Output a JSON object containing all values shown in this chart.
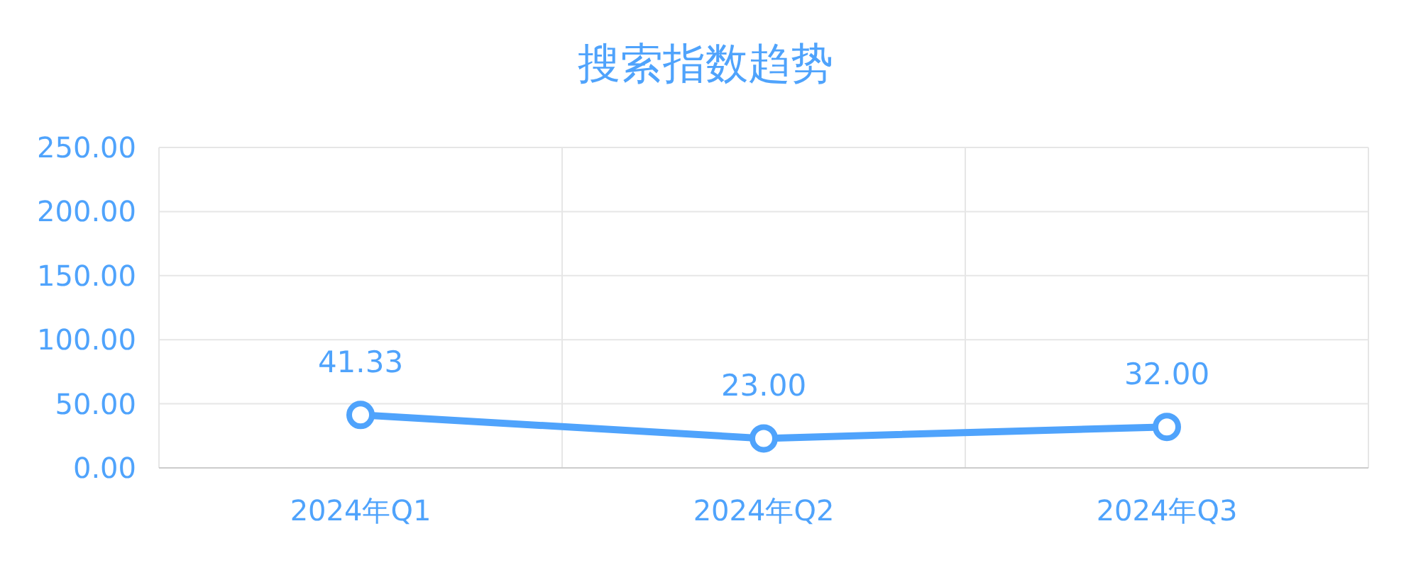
{
  "chart_data": {
    "type": "line",
    "title": "搜索指数趋势",
    "categories": [
      "2024年Q1",
      "2024年Q2",
      "2024年Q3"
    ],
    "series": [
      {
        "color": "#4fa3fc",
        "values": [
          41.33,
          23.0,
          32.0
        ],
        "value_labels": [
          "41.33",
          "23.00",
          "32.00"
        ]
      }
    ],
    "ylim": [
      0,
      250
    ],
    "yticks": [
      {
        "value": 0,
        "label": "0.00"
      },
      {
        "value": 50,
        "label": "50.00"
      },
      {
        "value": 100,
        "label": "100.00"
      },
      {
        "value": 150,
        "label": "150.00"
      },
      {
        "value": 200,
        "label": "200.00"
      },
      {
        "value": 250,
        "label": "250.00"
      }
    ],
    "grid": true,
    "marker": "circle",
    "line_style": "solid"
  }
}
